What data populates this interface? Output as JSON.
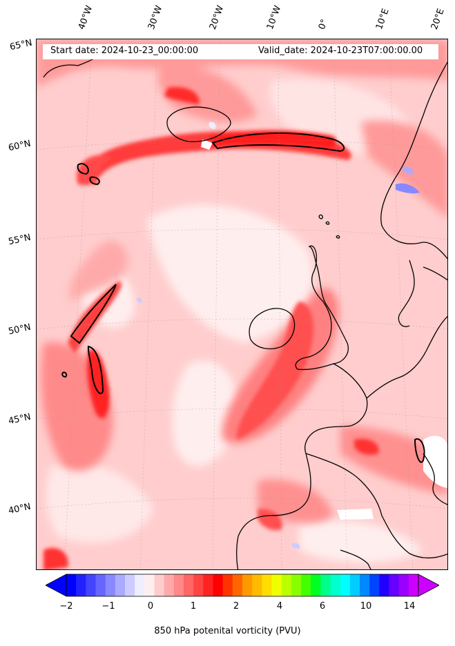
{
  "map": {
    "header": {
      "start_date": "Start date: 2024-10-23_00:00:00",
      "valid_date": "Valid_date: 2024-10-23T07:00:00.00"
    },
    "longitude_labels": [
      "40°W",
      "30°W",
      "20°W",
      "10°W",
      "0°",
      "10°E",
      "20°E"
    ],
    "latitude_labels": [
      "65°N",
      "60°N",
      "55°N",
      "50°N",
      "45°N",
      "40°N"
    ],
    "colorbar": {
      "label": "850 hPa potenital vorticity (PVU)",
      "tick_labels": [
        "−2",
        "−1",
        "0",
        "1",
        "2",
        "4",
        "6",
        "10",
        "14"
      ],
      "colors": [
        "#0000ff",
        "#2222ff",
        "#4444ff",
        "#6666ff",
        "#8888ff",
        "#aaaaff",
        "#ccccff",
        "#eeeeff",
        "#ffeeee",
        "#ffcccc",
        "#ffaaaa",
        "#ff8888",
        "#ff6666",
        "#ff4444",
        "#ff2222",
        "#ff0000",
        "#ff3300",
        "#ff6600",
        "#ff9900",
        "#ffbb00",
        "#ffdd00",
        "#eeff00",
        "#bbff00",
        "#88ff00",
        "#44ff00",
        "#00ff22",
        "#00ff88",
        "#00ffcc",
        "#00ffff",
        "#00ccff",
        "#0088ff",
        "#0044ff",
        "#2200ff",
        "#6600ff",
        "#9900ff",
        "#cc00ff"
      ]
    },
    "colors": {
      "background_field": "#ffcdcd",
      "strong_field": "#ff2a2a",
      "coastline": "#000000"
    }
  }
}
